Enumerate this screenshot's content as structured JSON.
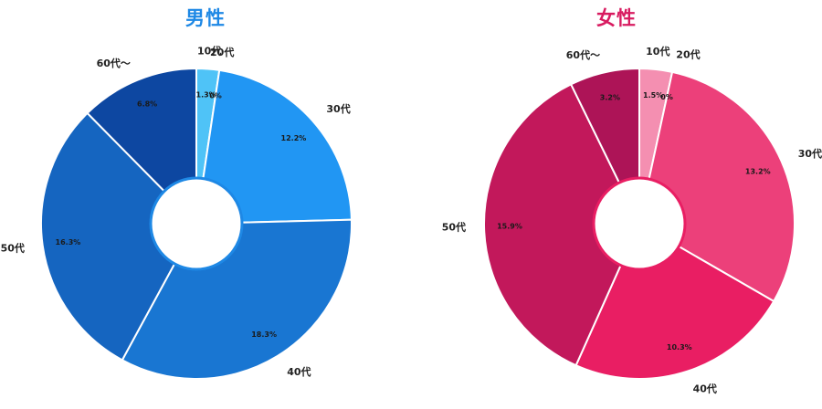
{
  "chart_data": [
    {
      "type": "pie",
      "title": "男性",
      "title_color": "#1e88e5",
      "categories": [
        "10代",
        "20代",
        "30代",
        "40代",
        "50代",
        "60代〜"
      ],
      "values": [
        1.3,
        0,
        12.2,
        18.3,
        16.3,
        6.8
      ],
      "value_labels": [
        "1.3%",
        "0%",
        "12.2%",
        "18.3%",
        "16.3%",
        "6.8%"
      ],
      "colors": [
        "#4fc3f7",
        "#42a5f5",
        "#2196f3",
        "#1976d2",
        "#1565c0",
        "#0d47a1"
      ],
      "center_ring_color": "#1e88e5",
      "legend": "none"
    },
    {
      "type": "pie",
      "title": "女性",
      "title_color": "#d81b60",
      "categories": [
        "10代",
        "20代",
        "30代",
        "40代",
        "50代",
        "60代〜"
      ],
      "values": [
        1.5,
        0,
        13.2,
        10.3,
        15.9,
        3.2
      ],
      "value_labels": [
        "1.5%",
        "0%",
        "13.2%",
        "10.3%",
        "15.9%",
        "3.2%"
      ],
      "colors": [
        "#f48fb1",
        "#f06292",
        "#ec407a",
        "#e91e63",
        "#c2185b",
        "#ad1457"
      ],
      "center_ring_color": "#e91e63",
      "legend": "none"
    }
  ]
}
